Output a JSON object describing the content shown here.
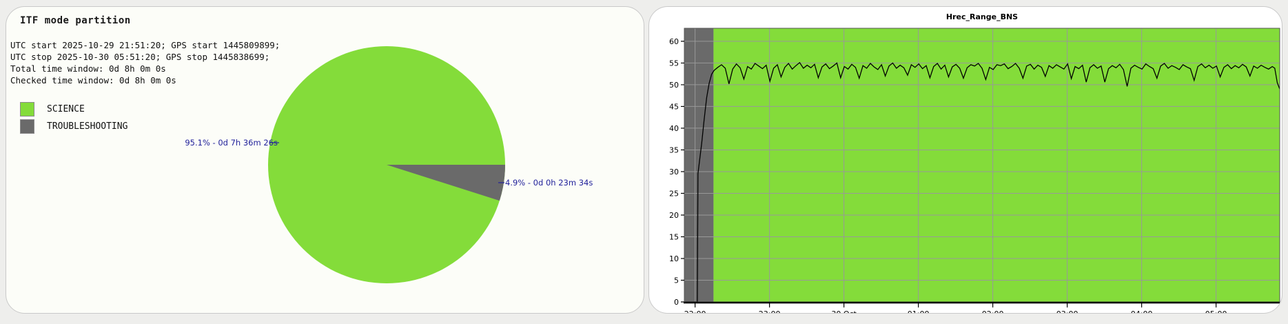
{
  "page_bg": "#eeeeec",
  "colors": {
    "science_green": "#84dc3a",
    "troubleshooting_gray": "#6a6a6a",
    "grid_gray": "#999999",
    "callout_blue": "#22229b",
    "panel_border": "#c9c9c9",
    "line_black": "#000000"
  },
  "left_panel": {
    "title": "ITF mode partition",
    "info_lines": [
      "UTC start 2025-10-29 21:51:20; GPS start 1445809899;",
      "UTC stop 2025-10-30 05:51:20; GPS stop 1445838699;",
      "Total time window: 0d 8h 0m 0s",
      "Checked time window: 0d 8h 0m 0s"
    ],
    "legend": {
      "items": [
        {
          "label": "SCIENCE",
          "color": "#84dc3a"
        },
        {
          "label": "TROUBLESHOOTING",
          "color": "#6a6a6a"
        }
      ]
    },
    "pie_labels": {
      "science": "95.1% - 0d 7h 36m 26s",
      "troubleshooting": "4.9% - 0d 0h 23m 34s"
    }
  },
  "right_panel": {
    "title": "Hrec_Range_BNS"
  },
  "chart_data": [
    {
      "type": "pie",
      "title": "ITF mode partition",
      "slices": [
        {
          "label": "SCIENCE",
          "percent": 95.1,
          "duration": "0d 7h 36m 26s",
          "color": "#84dc3a"
        },
        {
          "label": "TROUBLESHOOTING",
          "percent": 4.9,
          "duration": "0d 0h 23m 34s",
          "color": "#6a6a6a"
        }
      ],
      "annotations": [
        "95.1% - 0d 7h 36m 26s",
        "4.9% - 0d 0h 23m 34s"
      ]
    },
    {
      "type": "line",
      "title": "Hrec_Range_BNS",
      "x_start": "2025-10-29 21:51:20 UTC",
      "x_end": "2025-10-30 05:51:20 UTC",
      "x_total_minutes": 480,
      "x_ticks": [
        {
          "minute": 8.67,
          "label": "22:00"
        },
        {
          "minute": 68.67,
          "label": "23:00"
        },
        {
          "minute": 128.67,
          "label": "30 Oct"
        },
        {
          "minute": 188.67,
          "label": "01:00"
        },
        {
          "minute": 248.67,
          "label": "02:00"
        },
        {
          "minute": 308.67,
          "label": "03:00"
        },
        {
          "minute": 368.67,
          "label": "04:00"
        },
        {
          "minute": 428.67,
          "label": "05:00"
        }
      ],
      "ylim": [
        0,
        63
      ],
      "y_ticks": [
        0,
        5,
        10,
        15,
        20,
        25,
        30,
        35,
        40,
        45,
        50,
        55,
        60
      ],
      "grid": true,
      "line_color": "#000000",
      "background_regions": [
        {
          "label": "TROUBLESHOOTING",
          "start_minute": 0,
          "end_minute": 23.57,
          "color": "#6a6a6a"
        },
        {
          "label": "SCIENCE",
          "start_minute": 23.57,
          "end_minute": 480,
          "color": "#84dc3a"
        }
      ],
      "series": [
        {
          "name": "Hrec_Range_BNS",
          "points": [
            [
              0,
              0
            ],
            [
              6,
              0
            ],
            [
              10.5,
              0
            ],
            [
              11,
              29.5
            ],
            [
              12.5,
              33
            ],
            [
              14,
              36.5
            ],
            [
              16,
              42
            ],
            [
              18,
              47
            ],
            [
              20,
              50.3
            ],
            [
              22,
              52.4
            ],
            [
              24,
              53.3
            ],
            [
              27,
              54.0
            ],
            [
              30,
              54.6
            ],
            [
              33,
              53.8
            ],
            [
              36,
              50.2
            ],
            [
              39,
              53.6
            ],
            [
              42,
              54.8
            ],
            [
              45,
              53.9
            ],
            [
              48,
              51.3
            ],
            [
              51,
              54.2
            ],
            [
              54,
              53.6
            ],
            [
              57,
              54.9
            ],
            [
              60,
              54.3
            ],
            [
              63,
              53.7
            ],
            [
              66,
              54.5
            ],
            [
              69,
              50.8
            ],
            [
              72,
              53.8
            ],
            [
              75,
              54.6
            ],
            [
              78,
              51.8
            ],
            [
              81,
              54.0
            ],
            [
              84,
              54.9
            ],
            [
              87,
              53.6
            ],
            [
              90,
              54.4
            ],
            [
              93,
              55.1
            ],
            [
              96,
              53.8
            ],
            [
              99,
              54.5
            ],
            [
              102,
              53.9
            ],
            [
              105,
              54.7
            ],
            [
              108,
              51.6
            ],
            [
              111,
              54.1
            ],
            [
              114,
              54.8
            ],
            [
              117,
              53.7
            ],
            [
              120,
              54.3
            ],
            [
              123,
              55.0
            ],
            [
              126,
              51.6
            ],
            [
              129,
              54.2
            ],
            [
              132,
              53.6
            ],
            [
              135,
              54.7
            ],
            [
              138,
              54.0
            ],
            [
              141,
              51.5
            ],
            [
              144,
              54.4
            ],
            [
              147,
              53.8
            ],
            [
              150,
              54.9
            ],
            [
              153,
              54.1
            ],
            [
              156,
              53.5
            ],
            [
              159,
              54.6
            ],
            [
              162,
              52.0
            ],
            [
              165,
              54.3
            ],
            [
              168,
              55.0
            ],
            [
              171,
              53.8
            ],
            [
              174,
              54.5
            ],
            [
              177,
              53.9
            ],
            [
              180,
              52.2
            ],
            [
              183,
              54.6
            ],
            [
              186,
              54.0
            ],
            [
              189,
              54.8
            ],
            [
              192,
              53.7
            ],
            [
              195,
              54.4
            ],
            [
              198,
              51.6
            ],
            [
              201,
              54.2
            ],
            [
              204,
              54.9
            ],
            [
              207,
              53.6
            ],
            [
              210,
              54.5
            ],
            [
              213,
              51.8
            ],
            [
              216,
              54.1
            ],
            [
              219,
              54.7
            ],
            [
              222,
              53.8
            ],
            [
              225,
              51.5
            ],
            [
              228,
              53.9
            ],
            [
              231,
              54.6
            ],
            [
              234,
              54.3
            ],
            [
              237,
              54.9
            ],
            [
              240,
              53.8
            ],
            [
              243,
              51.2
            ],
            [
              246,
              54.0
            ],
            [
              249,
              53.5
            ],
            [
              252,
              54.6
            ],
            [
              255,
              54.4
            ],
            [
              258,
              54.8
            ],
            [
              261,
              53.7
            ],
            [
              264,
              54.2
            ],
            [
              267,
              54.9
            ],
            [
              270,
              53.8
            ],
            [
              273,
              51.5
            ],
            [
              276,
              54.3
            ],
            [
              279,
              54.7
            ],
            [
              282,
              53.6
            ],
            [
              285,
              54.5
            ],
            [
              288,
              54.0
            ],
            [
              291,
              51.9
            ],
            [
              294,
              54.4
            ],
            [
              297,
              53.8
            ],
            [
              300,
              54.6
            ],
            [
              303,
              54.1
            ],
            [
              306,
              53.6
            ],
            [
              309,
              54.8
            ],
            [
              312,
              51.4
            ],
            [
              315,
              54.2
            ],
            [
              318,
              53.7
            ],
            [
              321,
              54.5
            ],
            [
              324,
              50.6
            ],
            [
              327,
              53.9
            ],
            [
              330,
              54.6
            ],
            [
              333,
              53.8
            ],
            [
              336,
              54.3
            ],
            [
              339,
              50.6
            ],
            [
              342,
              53.7
            ],
            [
              345,
              54.4
            ],
            [
              348,
              53.9
            ],
            [
              351,
              54.7
            ],
            [
              354,
              53.5
            ],
            [
              357,
              49.6
            ],
            [
              360,
              53.8
            ],
            [
              363,
              54.5
            ],
            [
              366,
              54.0
            ],
            [
              369,
              53.6
            ],
            [
              372,
              54.8
            ],
            [
              375,
              54.2
            ],
            [
              378,
              53.7
            ],
            [
              381,
              51.5
            ],
            [
              384,
              54.3
            ],
            [
              387,
              54.9
            ],
            [
              390,
              53.8
            ],
            [
              393,
              54.4
            ],
            [
              396,
              54.0
            ],
            [
              399,
              53.5
            ],
            [
              402,
              54.6
            ],
            [
              405,
              54.1
            ],
            [
              408,
              53.7
            ],
            [
              411,
              51.0
            ],
            [
              414,
              54.2
            ],
            [
              417,
              54.8
            ],
            [
              420,
              53.9
            ],
            [
              423,
              54.5
            ],
            [
              426,
              53.8
            ],
            [
              429,
              54.3
            ],
            [
              432,
              51.8
            ],
            [
              435,
              54.0
            ],
            [
              438,
              54.6
            ],
            [
              441,
              53.7
            ],
            [
              444,
              54.4
            ],
            [
              447,
              53.9
            ],
            [
              450,
              54.7
            ],
            [
              453,
              54.1
            ],
            [
              456,
              52.0
            ],
            [
              459,
              54.3
            ],
            [
              462,
              53.8
            ],
            [
              465,
              54.5
            ],
            [
              468,
              54.0
            ],
            [
              471,
              53.6
            ],
            [
              474,
              54.2
            ],
            [
              476,
              53.8
            ],
            [
              478,
              50.5
            ],
            [
              480,
              49.0
            ]
          ]
        }
      ]
    }
  ]
}
